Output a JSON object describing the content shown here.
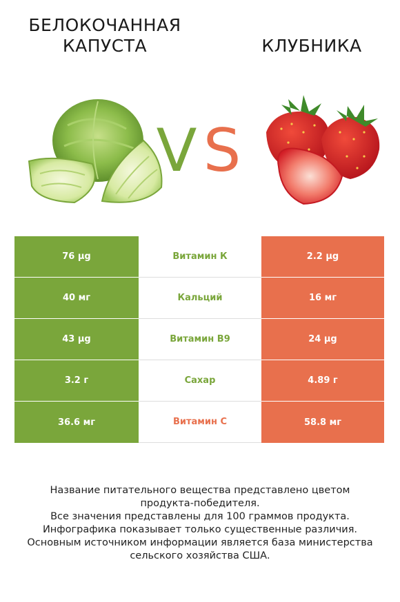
{
  "titles": {
    "left_line1": "БЕЛОКОЧАННАЯ",
    "left_line2": "КАПУСТА",
    "right": "КЛУБНИКА"
  },
  "vs": {
    "v": "V",
    "s": "S"
  },
  "colors": {
    "left": "#7aa63b",
    "right": "#e8704d"
  },
  "rows": [
    {
      "left": "76 µg",
      "nutrient": "Витамин К",
      "right": "2.2 µg",
      "winner": "left"
    },
    {
      "left": "40 мг",
      "nutrient": "Кальций",
      "right": "16 мг",
      "winner": "left"
    },
    {
      "left": "43 µg",
      "nutrient": "Витамин B9",
      "right": "24 µg",
      "winner": "left"
    },
    {
      "left": "3.2 г",
      "nutrient": "Сахар",
      "right": "4.89 г",
      "winner": "left"
    },
    {
      "left": "36.6 мг",
      "nutrient": "Витамин C",
      "right": "58.8 мг",
      "winner": "right"
    }
  ],
  "footer": {
    "line1": "Название питательного вещества представлено цветом",
    "line2": "продукта-победителя.",
    "line3": "Все значения представлены для 100 граммов продукта.",
    "line4": "Инфографика показывает только существенные различия.",
    "line5": "Основным источником информации является база министерства",
    "line6": "сельского хозяйства США."
  }
}
